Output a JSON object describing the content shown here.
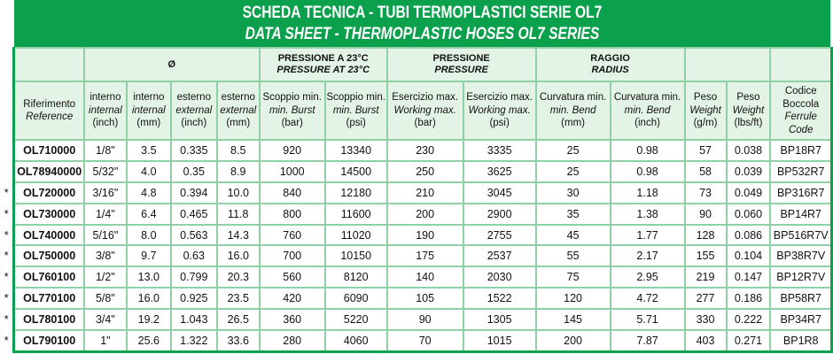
{
  "title": {
    "line1": "SCHEDA TECNICA - TUBI TERMOPLASTICI SERIE OL7",
    "line2": "DATA SHEET - THERMOPLASTIC HOSES OL7 SERIES"
  },
  "groups": {
    "diameter": "Ø",
    "burst": {
      "it": "PRESSIONE A 23°C",
      "en": "PRESSURE AT 23°C"
    },
    "pressure": {
      "it": "PRESSIONE",
      "en": "PRESSURE"
    },
    "radius": {
      "it": "RAGGIO",
      "en": "RADIUS"
    }
  },
  "columns": [
    {
      "it": "Riferimento",
      "en": "Reference",
      "unit": ""
    },
    {
      "it": "interno",
      "en": "internal",
      "unit": "(inch)"
    },
    {
      "it": "interno",
      "en": "internal",
      "unit": "(mm)"
    },
    {
      "it": "esterno",
      "en": "external",
      "unit": "(inch)"
    },
    {
      "it": "esterno",
      "en": "external",
      "unit": "(mm)"
    },
    {
      "it": "Scoppio min.",
      "en": "min. Burst",
      "unit": "(bar)"
    },
    {
      "it": "Scoppio min.",
      "en": "min. Burst",
      "unit": "(psi)"
    },
    {
      "it": "Esercizio max.",
      "en": "Working max.",
      "unit": "(bar)"
    },
    {
      "it": "Esercizio max.",
      "en": "Working max.",
      "unit": "(psi)"
    },
    {
      "it": "Curvatura min.",
      "en": "min. Bend",
      "unit": "(mm)"
    },
    {
      "it": "Curvatura min.",
      "en": "min. Bend",
      "unit": "(inch)"
    },
    {
      "it": "Peso",
      "en": "Weight",
      "unit": "(g/m)"
    },
    {
      "it": "Peso",
      "en": "Weight",
      "unit": "(lbs/ft)"
    },
    {
      "it": "Codice",
      "it2": "Boccola",
      "en": "Ferrule",
      "en2": "Code"
    }
  ],
  "rows": [
    {
      "star": "",
      "cells": [
        "OL710000",
        "1/8\"",
        "3.5",
        "0.335",
        "8.5",
        "920",
        "13340",
        "230",
        "3335",
        "25",
        "0.98",
        "57",
        "0.038",
        "BP18R7"
      ]
    },
    {
      "star": "",
      "cells": [
        "OL78940000",
        "5/32\"",
        "4.0",
        "0.35",
        "8.9",
        "1000",
        "14500",
        "250",
        "3625",
        "25",
        "0.98",
        "58",
        "0.039",
        "BP532R7"
      ]
    },
    {
      "star": "*",
      "cells": [
        "OL720000",
        "3/16\"",
        "4.8",
        "0.394",
        "10.0",
        "840",
        "12180",
        "210",
        "3045",
        "30",
        "1.18",
        "73",
        "0.049",
        "BP316R7"
      ]
    },
    {
      "star": "*",
      "cells": [
        "OL730000",
        "1/4\"",
        "6.4",
        "0.465",
        "11.8",
        "800",
        "11600",
        "200",
        "2900",
        "35",
        "1.38",
        "90",
        "0.060",
        "BP14R7"
      ]
    },
    {
      "star": "*",
      "cells": [
        "OL740000",
        "5/16\"",
        "8.0",
        "0.563",
        "14.3",
        "760",
        "11020",
        "190",
        "2755",
        "45",
        "1.77",
        "128",
        "0.086",
        "BP516R7V"
      ]
    },
    {
      "star": "*",
      "cells": [
        "OL750000",
        "3/8\"",
        "9.7",
        "0.63",
        "16.0",
        "700",
        "10150",
        "175",
        "2537",
        "55",
        "2.17",
        "155",
        "0.104",
        "BP38R7V"
      ]
    },
    {
      "star": "*",
      "cells": [
        "OL760100",
        "1/2\"",
        "13.0",
        "0.799",
        "20.3",
        "560",
        "8120",
        "140",
        "2030",
        "75",
        "2.95",
        "219",
        "0.147",
        "BP12R7V"
      ]
    },
    {
      "star": "*",
      "cells": [
        "OL770100",
        "5/8\"",
        "16.0",
        "0.925",
        "23.5",
        "420",
        "6090",
        "105",
        "1522",
        "120",
        "4.72",
        "277",
        "0.186",
        "BP58R7"
      ]
    },
    {
      "star": "*",
      "cells": [
        "OL780100",
        "3/4\"",
        "19.2",
        "1.043",
        "26.5",
        "360",
        "5220",
        "90",
        "1305",
        "145",
        "5.71",
        "330",
        "0.222",
        "BP34R7"
      ]
    },
    {
      "star": "*",
      "cells": [
        "OL790100",
        "1\"",
        "25.6",
        "1.322",
        "33.6",
        "280",
        "4060",
        "70",
        "1015",
        "200",
        "7.87",
        "403",
        "0.271",
        "BP1R8"
      ]
    }
  ],
  "colors": {
    "brand_green": "#0ba04c",
    "header_bg": "#e3f3e6",
    "grid": "#8fd0a6"
  }
}
